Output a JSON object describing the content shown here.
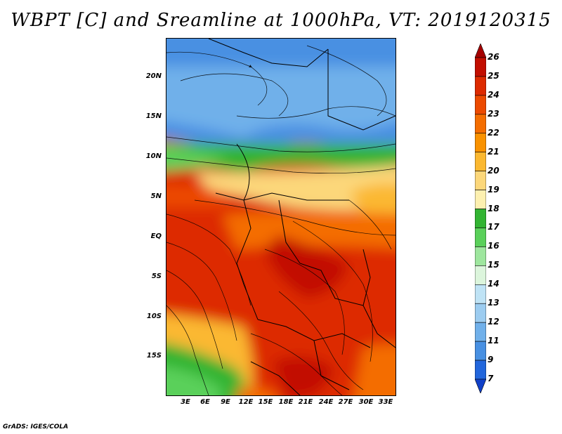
{
  "title": "WBPT [C] and Sreamline at 1000hPa, VT: 2019120315",
  "footer": "GrADS: IGES/COLA",
  "map": {
    "y_labels": [
      "20N",
      "15N",
      "10N",
      "5N",
      "EQ",
      "5S",
      "10S",
      "15S"
    ],
    "x_labels": [
      "3E",
      "6E",
      "9E",
      "12E",
      "15E",
      "18E",
      "21E",
      "24E",
      "27E",
      "30E",
      "33E"
    ]
  },
  "colorbar": {
    "labels": [
      "26",
      "25",
      "24",
      "23",
      "22",
      "21",
      "20",
      "19",
      "18",
      "17",
      "16",
      "15",
      "14",
      "13",
      "12",
      "11",
      "9",
      "7"
    ],
    "colors": [
      "#a50000",
      "#c20e00",
      "#dd2a00",
      "#ec4a00",
      "#f46d00",
      "#f99200",
      "#fbb830",
      "#fcd77a",
      "#fdf0b0",
      "#32b432",
      "#5ad05a",
      "#9ee69e",
      "#dcf5dc",
      "#bfe3f5",
      "#9cccf0",
      "#70b0ea",
      "#4890e2",
      "#2266dc",
      "#1040c8"
    ]
  }
}
